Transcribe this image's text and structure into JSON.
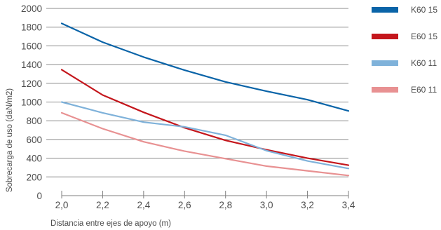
{
  "chart_data": {
    "type": "line",
    "xlabel": "Distancia entre ejes de apoyo (m)",
    "ylabel": "Sobrecarga de uso (daN/m2)",
    "x": [
      "2,0",
      "2,2",
      "2,4",
      "2,6",
      "2,8",
      "3,0",
      "3,2",
      "3,4"
    ],
    "x_values": [
      2.0,
      2.2,
      2.4,
      2.6,
      2.8,
      3.0,
      3.2,
      3.4
    ],
    "ylim": [
      0,
      2000
    ],
    "y_ticks": [
      "0",
      "200",
      "400",
      "600",
      "800",
      "1000",
      "1200",
      "1400",
      "1600",
      "1800",
      "2000"
    ],
    "y_tick_values": [
      0,
      200,
      400,
      600,
      800,
      1000,
      1200,
      1400,
      1600,
      1800,
      2000
    ],
    "grid": "horizontal",
    "legend_position": "right",
    "series": [
      {
        "name": "K60 15",
        "color": "#0a64a8",
        "values": [
          1840,
          1640,
          1480,
          1340,
          1215,
          1115,
          1025,
          905
        ]
      },
      {
        "name": "E60 15",
        "color": "#c4161c",
        "values": [
          1345,
          1075,
          890,
          725,
          590,
          490,
          400,
          325
        ]
      },
      {
        "name": "K60 11",
        "color": "#7fb2da",
        "values": [
          1000,
          885,
          785,
          735,
          645,
          480,
          370,
          290
        ]
      },
      {
        "name": "E60 11",
        "color": "#e89192",
        "values": [
          885,
          715,
          575,
          475,
          395,
          315,
          265,
          215
        ]
      }
    ]
  }
}
